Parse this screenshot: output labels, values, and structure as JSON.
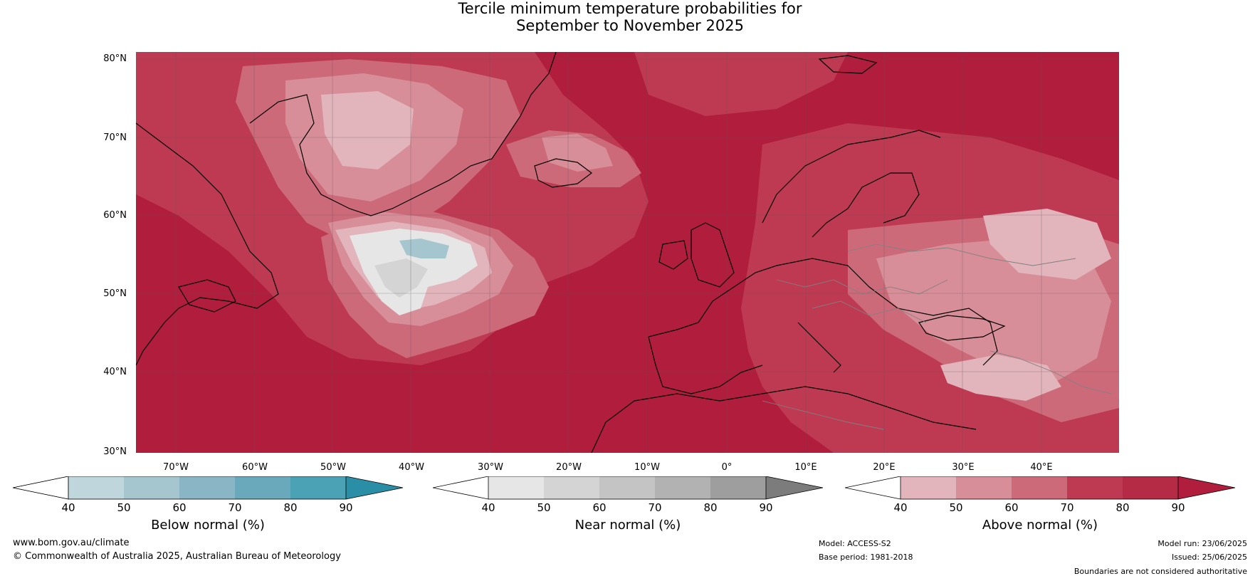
{
  "title": {
    "line1": "Tercile minimum temperature probabilities for",
    "line2": "September to November 2025"
  },
  "map": {
    "lat_labels": [
      "80°N",
      "70°N",
      "60°N",
      "50°N",
      "40°N",
      "30°N"
    ],
    "lon_labels": [
      "70°W",
      "60°W",
      "50°W",
      "40°W",
      "30°W",
      "20°W",
      "10°W",
      "0°",
      "10°E",
      "20°E",
      "30°E",
      "40°E"
    ],
    "colors": {
      "p90": "#b11d3c",
      "p80": "#be3a52",
      "p70": "#cd6a79",
      "p60": "#d88e98",
      "p50": "#e2b4bb",
      "near_normal_light": "#e6e6e6",
      "near_normal_mid": "#d4d4d4",
      "below_normal_light": "#a6c6cf",
      "coastline": "#000000",
      "borders": "#808080"
    }
  },
  "legends": [
    {
      "title": "Below normal (%)",
      "ticks": [
        "40",
        "50",
        "60",
        "70",
        "80",
        "90"
      ],
      "colors": [
        "#ffffff",
        "#bfd6dc",
        "#a6c6cf",
        "#8ab5c4",
        "#6aa9bb",
        "#4ba2b4",
        "#2a8fa6"
      ]
    },
    {
      "title": "Near normal (%)",
      "ticks": [
        "40",
        "50",
        "60",
        "70",
        "80",
        "90"
      ],
      "colors": [
        "#ffffff",
        "#e6e6e6",
        "#d4d4d4",
        "#c4c4c4",
        "#b2b2b2",
        "#9e9e9e",
        "#7c7c7c"
      ]
    },
    {
      "title": "Above normal (%)",
      "ticks": [
        "40",
        "50",
        "60",
        "70",
        "80",
        "90"
      ],
      "colors": [
        "#ffffff",
        "#e2b4bb",
        "#d88e98",
        "#cd6a79",
        "#be3a52",
        "#b52a44",
        "#b11d3c"
      ]
    }
  ],
  "footer": {
    "website": "www.bom.gov.au/climate",
    "copyright": "© Commonwealth of Australia 2025, Australian Bureau of Meteorology",
    "model": "Model: ACCESS-S2",
    "base_period": "Base period: 1981-2018",
    "model_run": "Model run: 23/06/2025",
    "issued": "Issued: 25/06/2025",
    "disclaimer": "Boundaries are not considered authoritative"
  }
}
